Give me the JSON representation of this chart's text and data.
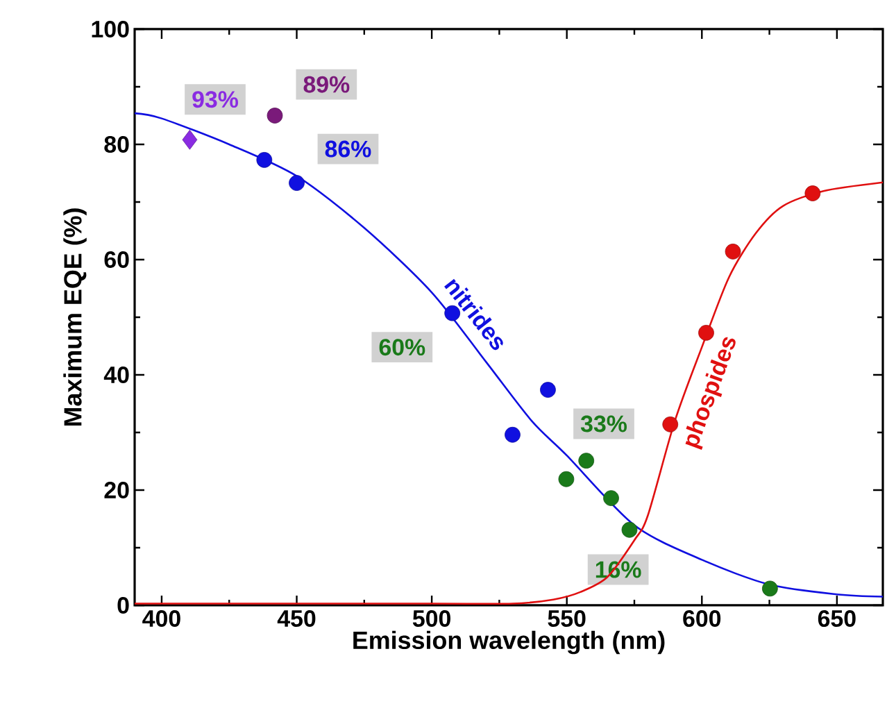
{
  "chart_data": {
    "type": "scatter",
    "xlabel": "Emission wavelength (nm)",
    "ylabel": "Maximum EQE (%)",
    "xlim": [
      390,
      667
    ],
    "ylim": [
      0,
      100
    ],
    "xticks": [
      400,
      450,
      500,
      550,
      600,
      650
    ],
    "yticks": [
      0,
      20,
      40,
      60,
      80,
      100
    ],
    "grid": false,
    "legend": false,
    "series": [
      {
        "color": "#1010e0",
        "marker": "circle",
        "x": [
          438,
          450,
          507.6,
          529.9,
          543
        ],
        "values": [
          77.3,
          73.3,
          50.7,
          29.6,
          37.4
        ]
      },
      {
        "color": "#e01010",
        "marker": "circle",
        "x": [
          588.3,
          601.6,
          611.5,
          641
        ],
        "values": [
          31.4,
          47.3,
          61.4,
          71.5
        ]
      },
      {
        "color": "#1a7a1a",
        "marker": "circle",
        "x": [
          549.8,
          557.2,
          566.4,
          573.2,
          625.2
        ],
        "values": [
          21.9,
          25.1,
          18.6,
          13.1,
          2.9
        ]
      },
      {
        "color": "#7a1a7a",
        "marker": "circle",
        "x": [
          441.9
        ],
        "values": [
          85.0
        ]
      },
      {
        "color": "#8a2be2",
        "marker": "diamond",
        "x": [
          410.4
        ],
        "values": [
          80.8
        ]
      },
      {
        "type": "line",
        "name": "nitrides",
        "color": "#1010e0",
        "marker": "none",
        "x": [
          390,
          400,
          425,
          450,
          475,
          500,
          520,
          537,
          550,
          575,
          600,
          625,
          650,
          667
        ],
        "values": [
          85.4,
          84.5,
          80,
          74.5,
          65.5,
          54.3,
          42.3,
          32,
          26,
          13.9,
          7.9,
          3.6,
          1.9,
          1.5
        ]
      },
      {
        "type": "line",
        "name": "phospides",
        "color": "#e01010",
        "marker": "none",
        "x": [
          390,
          500,
          530,
          545,
          555,
          565,
          575,
          580,
          590,
          600,
          610,
          620,
          630,
          645,
          667
        ],
        "values": [
          0.3,
          0.3,
          0.3,
          1,
          2.3,
          4.9,
          11.3,
          15.6,
          32,
          44.8,
          56.9,
          64.6,
          69.3,
          71.9,
          73.4
        ]
      }
    ],
    "annotations": [
      {
        "text": "93%",
        "x": 419.8,
        "y": 87.8
      },
      {
        "text": "89%",
        "x": 461,
        "y": 90.4
      },
      {
        "text": "86%",
        "x": 469,
        "y": 79.2
      },
      {
        "text": "60%",
        "x": 489,
        "y": 44.8
      },
      {
        "text": "33%",
        "x": 563.7,
        "y": 31.5
      },
      {
        "text": "16%",
        "x": 569,
        "y": 6.2
      }
    ]
  }
}
